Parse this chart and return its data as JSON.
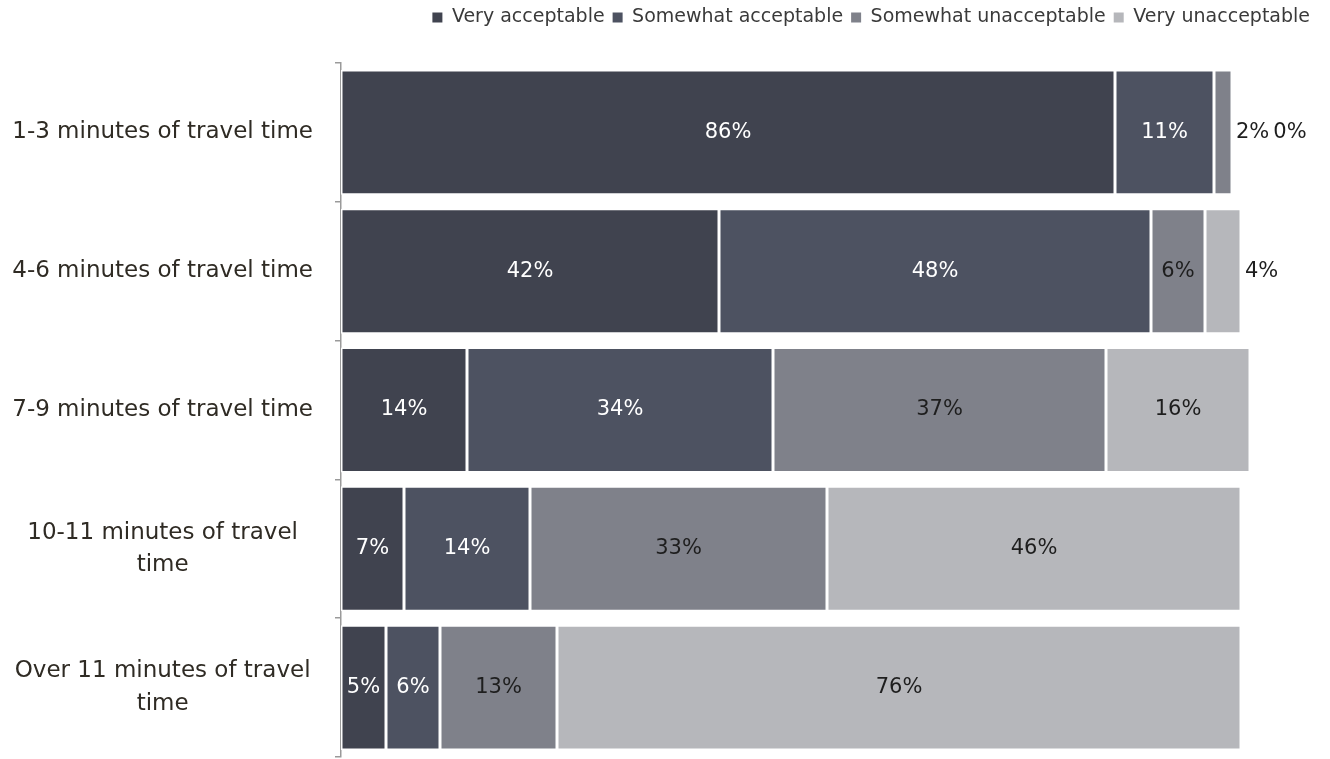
{
  "chart_data": {
    "type": "bar",
    "orientation": "horizontal",
    "stacked": true,
    "categories": [
      "1-3 minutes of travel time",
      "4-6 minutes of travel time",
      "7-9 minutes of travel time",
      "10-11 minutes of travel time",
      "Over 11 minutes of travel time"
    ],
    "series": [
      {
        "name": "Very acceptable",
        "color": "#40434f",
        "values": [
          86,
          42,
          14,
          7,
          5
        ],
        "value_labels": [
          "86%",
          "42%",
          "14%",
          "7%",
          "5%"
        ]
      },
      {
        "name": "Somewhat acceptable",
        "color": "#4d5261",
        "values": [
          11,
          48,
          34,
          14,
          6
        ],
        "value_labels": [
          "11%",
          "48%",
          "34%",
          "14%",
          "6%"
        ]
      },
      {
        "name": "Somewhat unacceptable",
        "color": "#7f818a",
        "values": [
          2,
          6,
          37,
          33,
          13
        ],
        "value_labels": [
          "2%",
          "6%",
          "37%",
          "33%",
          "13%"
        ]
      },
      {
        "name": "Very unacceptable",
        "color": "#b6b7bb",
        "values": [
          0,
          4,
          16,
          46,
          76
        ],
        "value_labels": [
          "0%",
          "4%",
          "16%",
          "46%",
          "76%"
        ]
      }
    ],
    "xlim": [
      0,
      101
    ],
    "legend": "top right",
    "grid": false,
    "tick_labels": "y"
  }
}
